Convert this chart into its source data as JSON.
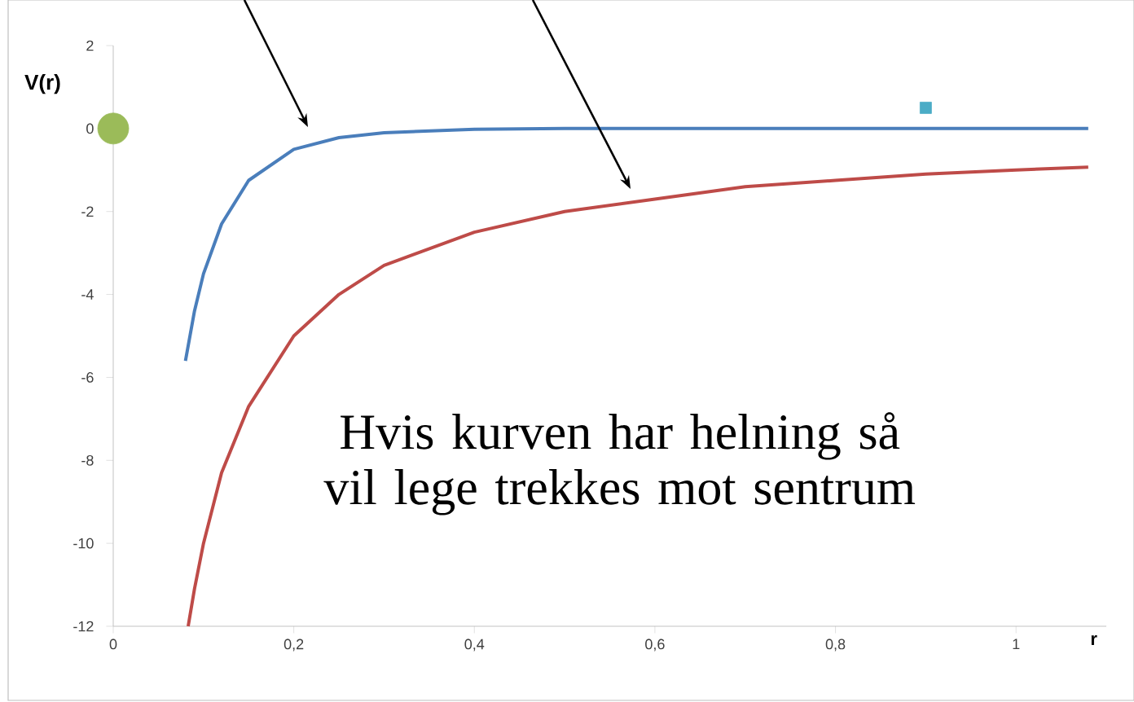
{
  "chart_data": {
    "type": "line",
    "xlabel": "r",
    "ylabel": "V(r)",
    "xlim": [
      0,
      1.1
    ],
    "ylim": [
      -12,
      2
    ],
    "xticks": [
      0,
      {
        "value": 0.2,
        "label": "0,2"
      },
      {
        "value": 0.4,
        "label": "0,4"
      },
      {
        "value": 0.6,
        "label": "0,6"
      },
      {
        "value": 0.8,
        "label": "0,8"
      },
      1
    ],
    "yticks": [
      -12,
      -10,
      -8,
      -6,
      -4,
      -2,
      0,
      2
    ],
    "annotations": [
      "Hvis kurven har helning så vil lege trekkes mot sentrum"
    ],
    "series": [
      {
        "color": "#4a7ebb",
        "marker": "none",
        "x": [
          0.08,
          0.09,
          0.1,
          0.12,
          0.15,
          0.2,
          0.25,
          0.3,
          0.4,
          0.5,
          0.7,
          0.9,
          1.08
        ],
        "values": [
          -5.6,
          -4.4,
          -3.5,
          -2.3,
          -1.25,
          -0.5,
          -0.22,
          -0.1,
          -0.02,
          0,
          0,
          0,
          0
        ]
      },
      {
        "color": "#be4b48",
        "marker": "none",
        "x": [
          0.083,
          0.09,
          0.1,
          0.12,
          0.15,
          0.2,
          0.25,
          0.3,
          0.4,
          0.5,
          0.6,
          0.7,
          0.8,
          0.9,
          1.0,
          1.08
        ],
        "values": [
          -12,
          -11.1,
          -10,
          -8.3,
          -6.7,
          -5,
          -4,
          -3.3,
          -2.5,
          -2,
          -1.7,
          -1.4,
          -1.25,
          -1.1,
          -1,
          -0.93
        ]
      },
      {
        "type": "scatter",
        "color": "#9bbb59",
        "marker": "circle",
        "x": [
          0
        ],
        "values": [
          0
        ]
      },
      {
        "type": "scatter",
        "color": "#4bacc6",
        "marker": "square",
        "x": [
          0.9
        ],
        "values": [
          0.5
        ]
      }
    ]
  }
}
